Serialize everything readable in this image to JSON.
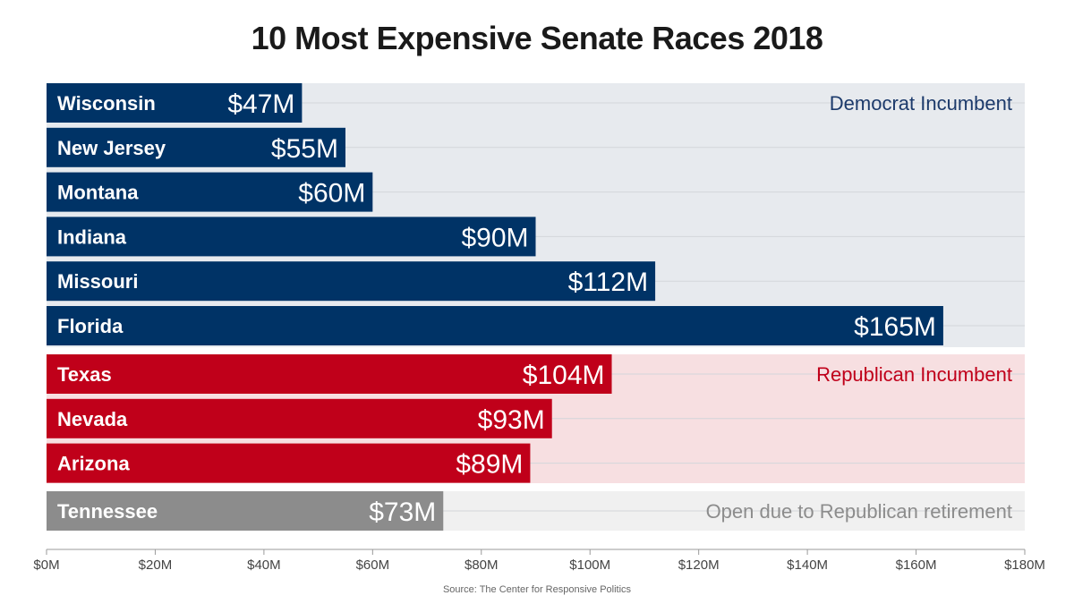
{
  "chart_data": {
    "type": "bar",
    "orientation": "horizontal",
    "title": "10 Most Expensive Senate Races 2018",
    "source": "Source: The Center for Responsive Politics",
    "xlim": [
      0,
      180
    ],
    "xticks": [
      0,
      20,
      40,
      60,
      80,
      100,
      120,
      140,
      160,
      180
    ],
    "xtick_labels": [
      "$0M",
      "$20M",
      "$40M",
      "$60M",
      "$80M",
      "$100M",
      "$120M",
      "$140M",
      "$160M",
      "$180M"
    ],
    "groups": [
      {
        "name": "Democrat Incumbent",
        "bar_color": "#003366",
        "bg_color": "#e7eaee",
        "label_color": "#1c3a6b",
        "bars": [
          {
            "category": "Wisconsin",
            "value": 47,
            "label": "$47M"
          },
          {
            "category": "New Jersey",
            "value": 55,
            "label": "$55M"
          },
          {
            "category": "Montana",
            "value": 60,
            "label": "$60M"
          },
          {
            "category": "Indiana",
            "value": 90,
            "label": "$90M"
          },
          {
            "category": "Missouri",
            "value": 112,
            "label": "$112M"
          },
          {
            "category": "Florida",
            "value": 165,
            "label": "$165M"
          }
        ]
      },
      {
        "name": "Republican Incumbent",
        "bar_color": "#c0001a",
        "bg_color": "#f7dfe1",
        "label_color": "#c0001a",
        "bars": [
          {
            "category": "Texas",
            "value": 104,
            "label": "$104M"
          },
          {
            "category": "Nevada",
            "value": 93,
            "label": "$93M"
          },
          {
            "category": "Arizona",
            "value": 89,
            "label": "$89M"
          }
        ]
      },
      {
        "name": "Open due to Republican  retirement",
        "bar_color": "#8c8c8c",
        "bg_color": "#f0f0f0",
        "label_color": "#8c8c8c",
        "bars": [
          {
            "category": "Tennessee",
            "value": 73,
            "label": "$73M"
          }
        ]
      }
    ]
  }
}
